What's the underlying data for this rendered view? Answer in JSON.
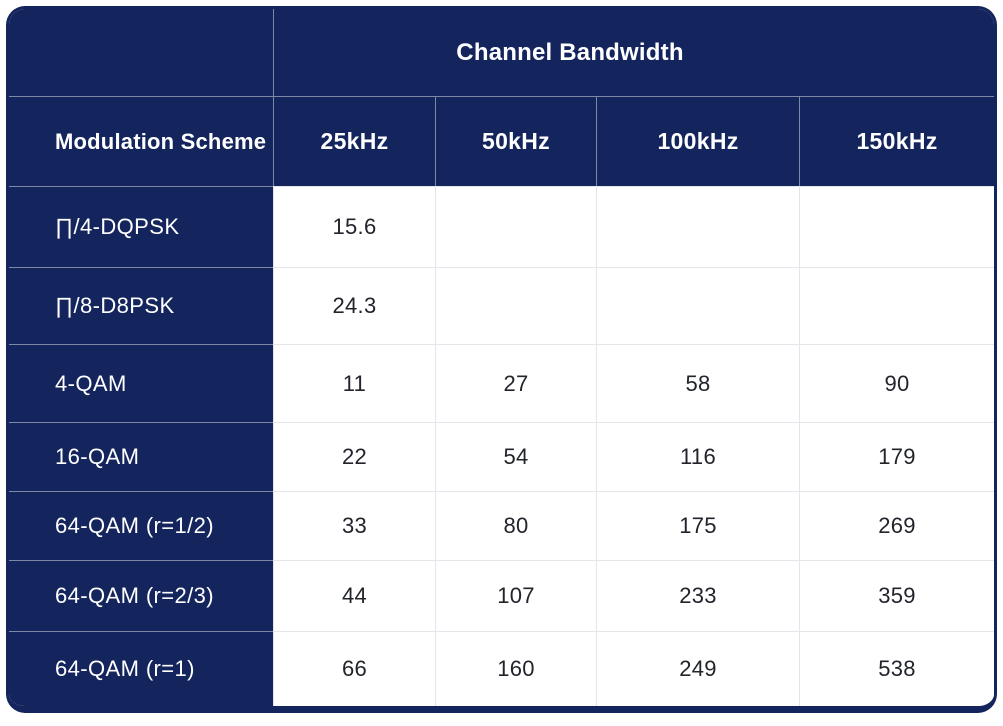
{
  "chart_data": {
    "type": "table",
    "title": "Channel Bandwidth",
    "row_header": "Modulation Scheme",
    "columns": [
      "25kHz",
      "50kHz",
      "100kHz",
      "150kHz"
    ],
    "rows": [
      {
        "label": "∏/4-DQPSK",
        "values": [
          "15.6",
          "",
          "",
          ""
        ]
      },
      {
        "label": "∏/8-D8PSK",
        "values": [
          "24.3",
          "",
          "",
          ""
        ]
      },
      {
        "label": "4-QAM",
        "values": [
          "11",
          "27",
          "58",
          "90"
        ]
      },
      {
        "label": "16-QAM",
        "values": [
          "22",
          "54",
          "116",
          "179"
        ]
      },
      {
        "label": "64-QAM (r=1/2)",
        "values": [
          "33",
          "80",
          "175",
          "269"
        ]
      },
      {
        "label": "64-QAM (r=2/3)",
        "values": [
          "44",
          "107",
          "233",
          "359"
        ]
      },
      {
        "label": "64-QAM (r=1)",
        "values": [
          "66",
          "160",
          "249",
          "538"
        ]
      }
    ],
    "layout": {
      "legend": "none",
      "grid": "on"
    },
    "colors": {
      "navy_background": "#14255e",
      "header_text": "#ffffff",
      "cell_background": "#ffffff",
      "cell_text": "#22242b",
      "navy_gridline": "#8d98b8",
      "white_gridline": "#e4e6ec"
    }
  }
}
